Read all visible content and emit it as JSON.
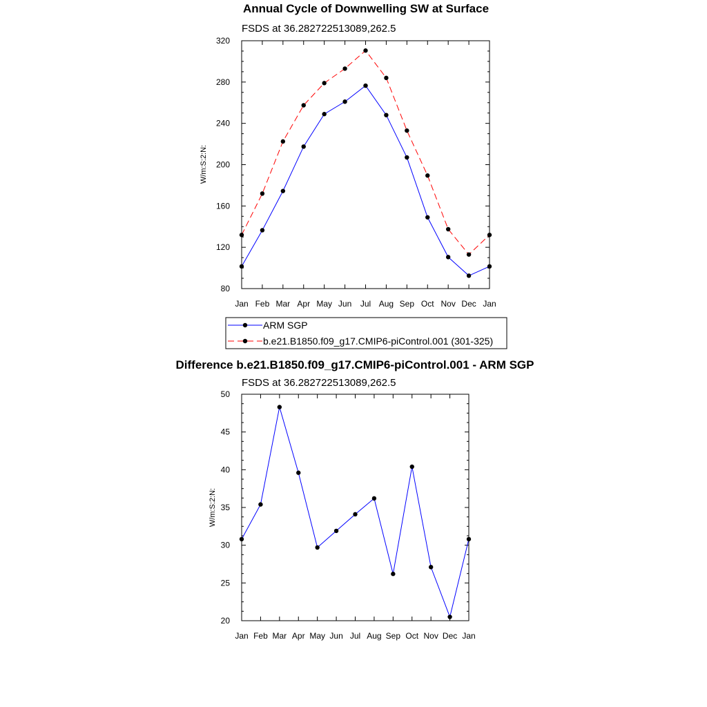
{
  "chart_data": [
    {
      "type": "line",
      "title": "Annual Cycle of Downwelling SW at Surface",
      "subtitle": "FSDS at 36.282722513089,262.5",
      "xlabel": "",
      "ylabel": "W/m:S:2:N:",
      "categories": [
        "Jan",
        "Feb",
        "Mar",
        "Apr",
        "May",
        "Jun",
        "Jul",
        "Aug",
        "Sep",
        "Oct",
        "Nov",
        "Dec",
        "Jan"
      ],
      "ylim": [
        80,
        320
      ],
      "yticks": [
        "80",
        "120",
        "160",
        "200",
        "240",
        "280",
        "320"
      ],
      "grid": false,
      "legend_position": "bottom",
      "series": [
        {
          "name": "ARM SGP",
          "color": "#0000ff",
          "dash": "solid",
          "values": [
            101.5,
            136.5,
            174.5,
            217.5,
            249,
            261,
            276.5,
            248,
            207,
            149,
            110.5,
            92.5,
            101.5
          ]
        },
        {
          "name": "b.e21.B1850.f09_g17.CMIP6-piControl.001 (301-325)",
          "color": "#ff0000",
          "dash": "dashed",
          "values": [
            132,
            172,
            222.5,
            257.5,
            279,
            293,
            310.5,
            284,
            233,
            189.5,
            137.5,
            113,
            132
          ]
        }
      ]
    },
    {
      "type": "line",
      "title": "Difference b.e21.B1850.f09_g17.CMIP6-piControl.001 - ARM SGP",
      "subtitle": "FSDS at 36.282722513089,262.5",
      "xlabel": "",
      "ylabel": "W/m:S:2:N:",
      "categories": [
        "Jan",
        "Feb",
        "Mar",
        "Apr",
        "May",
        "Jun",
        "Jul",
        "Aug",
        "Sep",
        "Oct",
        "Nov",
        "Dec",
        "Jan"
      ],
      "ylim": [
        20,
        50
      ],
      "yticks": [
        "20",
        "25",
        "30",
        "35",
        "40",
        "45",
        "50"
      ],
      "grid": false,
      "series": [
        {
          "color": "#0000ff",
          "dash": "solid",
          "values": [
            30.8,
            35.4,
            48.3,
            39.6,
            29.7,
            31.9,
            34.1,
            36.2,
            26.2,
            40.4,
            27.1,
            20.5,
            30.8
          ]
        }
      ]
    }
  ]
}
